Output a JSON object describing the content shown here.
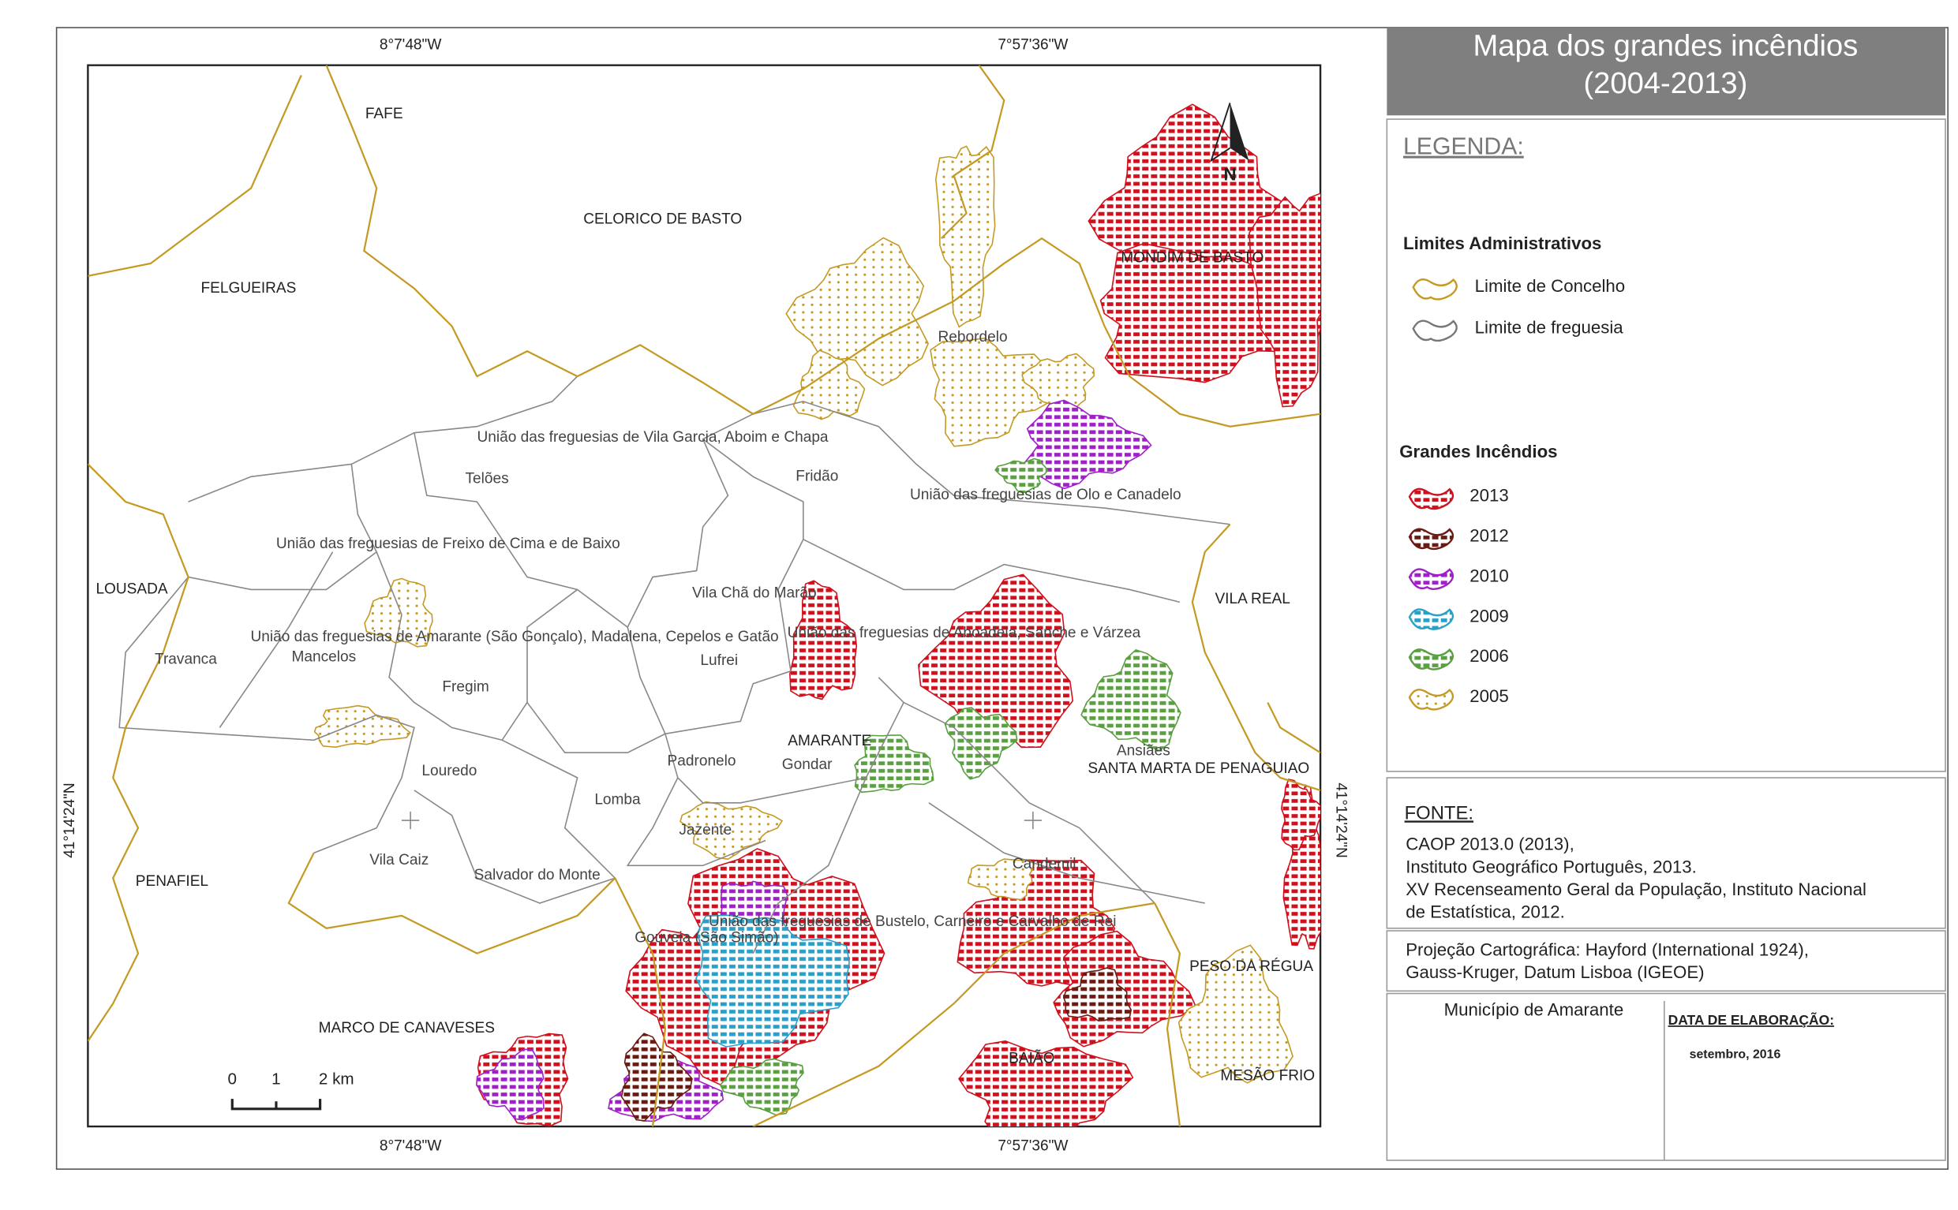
{
  "title": [
    "Mapa dos grandes incêndios",
    "(2004-2013)"
  ],
  "graticule": {
    "top": [
      "8°7'48\"W",
      "7°57'36\"W"
    ],
    "bottom": [
      "8°7'48\"W",
      "7°57'36\"W"
    ],
    "left": "41°14'24\"N",
    "right": "41°14'24\"N"
  },
  "north": "N",
  "scale_bar": [
    "0",
    "1",
    "2 km"
  ],
  "places": [
    "FAFE",
    "CELORICO DE BASTO",
    "FELGUEIRAS",
    "MONDIM DE BASTO",
    "Rebordelo",
    "União das freguesias de Vila Garcia, Aboim e Chapa",
    "Telões",
    "Fridão",
    "União das freguesias de Olo e Canadelo",
    "União das freguesias de Freixo de Cima e de Baixo",
    "LOUSADA",
    "VILA REAL",
    "Vila Chã do Marão",
    "União das freguesias de Amarante (São Gonçalo), Madalena, Cepelos e Gatão",
    "União das freguesias de Aboadela, Sanche e Várzea",
    "Travanca",
    "Mancelos",
    "Lufrei",
    "Fregim",
    "AMARANTE",
    "Ansiães",
    "Gondar",
    "Padronelo",
    "SANTA MARTA DE PENAGUIAO",
    "Louredo",
    "Lomba",
    "Jazente",
    "Vila Caiz",
    "Candemil",
    "PENAFIEL",
    "Salvador do Monte",
    "União das freguesias de Bustelo, Carneiro e Carvalho de Rei",
    "Gouveia (São Simão)",
    "PESO DA RÉGUA",
    "MARCO DE CANAVESES",
    "BAIÃO",
    "MESÃO FRIO"
  ],
  "legend": {
    "heading": "LEGENDA:",
    "admin_title": "Limites Administrativos",
    "admin_items": [
      {
        "label": "Limite de Concelho",
        "color": "#c49a22"
      },
      {
        "label": "Limite de freguesia",
        "color": "#777777"
      }
    ],
    "fires_title": "Grandes Incêndios",
    "fire_items": [
      {
        "label": "2013",
        "color": "#d0101c"
      },
      {
        "label": "2012",
        "color": "#6b1a12"
      },
      {
        "label": "2010",
        "color": "#a020c8"
      },
      {
        "label": "2009",
        "color": "#2a9fc8"
      },
      {
        "label": "2006",
        "color": "#5aa040"
      },
      {
        "label": "2005",
        "color": "#c49a22"
      }
    ]
  },
  "source": {
    "heading": "FONTE:",
    "lines": [
      "CAOP 2013.0 (2013),",
      "Instituto Geográfico Português, 2013.",
      "XV Recenseamento Geral da População, Instituto Nacional",
      "de Estatística, 2012."
    ]
  },
  "projection": [
    "Projeção Cartográfica: Hayford (International 1924),",
    "Gauss-Kruger, Datum Lisboa (IGEOE)"
  ],
  "municipality": "Município de Amarante",
  "date_heading": "DATA DE ELABORAÇÃO:",
  "date": "setembro, 2016"
}
